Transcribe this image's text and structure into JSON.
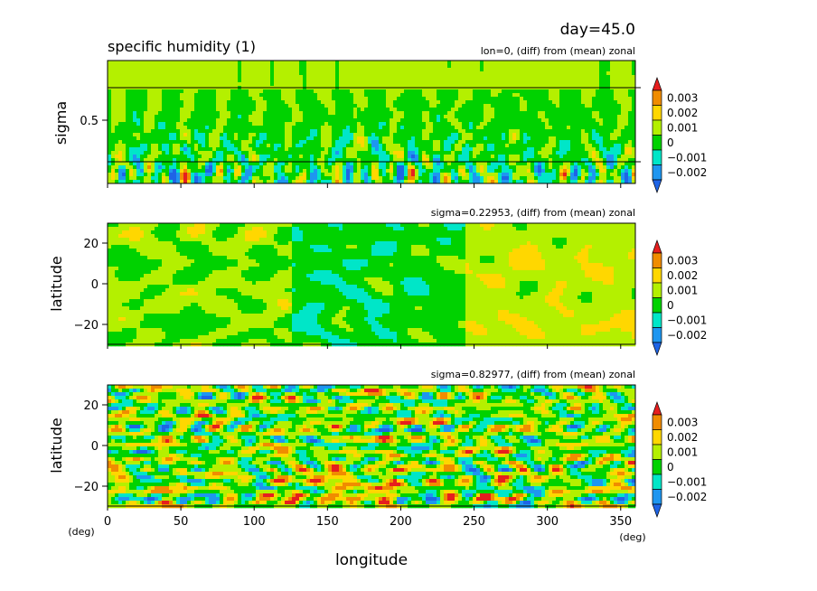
{
  "header": {
    "time_label": "day=45.0",
    "title": "specific humidity (1)"
  },
  "colors": {
    "levels": [
      -0.003,
      -0.002,
      -0.001,
      0,
      0.001,
      0.002,
      0.003
    ],
    "fills": [
      "#1e64e6",
      "#1e96f0",
      "#00e6c8",
      "#00d200",
      "#b4f000",
      "#ffd700",
      "#f08c00",
      "#e61e1e"
    ],
    "dominant_blue": "#1e96f0"
  },
  "colorbar": {
    "tick_labels": [
      "0.003",
      "0.002",
      "0.001",
      "0",
      "−0.001",
      "−0.002"
    ]
  },
  "xaxis": {
    "label": "longitude",
    "unit_left": "(deg)",
    "unit_right": "(deg)",
    "ticks": [
      "0",
      "50",
      "100",
      "150",
      "200",
      "250",
      "300",
      "350"
    ]
  },
  "chart_data": [
    {
      "type": "heatmap",
      "panel": "top",
      "subtitle": "lon=0, (diff) from (mean) zonal",
      "xlabel": "",
      "ylabel": "sigma",
      "y_ticks": [
        "0.5"
      ],
      "reference_lines_sigma": [
        0.22953,
        0.82977
      ],
      "y_range": [
        1.0,
        0.0
      ],
      "x_range": [
        0,
        360
      ],
      "grid": false
    },
    {
      "type": "heatmap",
      "panel": "middle",
      "subtitle": "sigma=0.22953, (diff) from (mean) zonal",
      "xlabel": "",
      "ylabel": "latitude",
      "y_ticks": [
        "20",
        "0",
        "−20"
      ],
      "y_range": [
        -30,
        30
      ],
      "x_range": [
        0,
        360
      ],
      "grid": false
    },
    {
      "type": "heatmap",
      "panel": "bottom",
      "subtitle": "sigma=0.82977, (diff) from (mean) zonal",
      "xlabel": "longitude",
      "ylabel": "latitude",
      "y_ticks": [
        "20",
        "0",
        "−20"
      ],
      "y_range": [
        -30,
        30
      ],
      "x_range": [
        0,
        360
      ],
      "grid": false
    }
  ]
}
